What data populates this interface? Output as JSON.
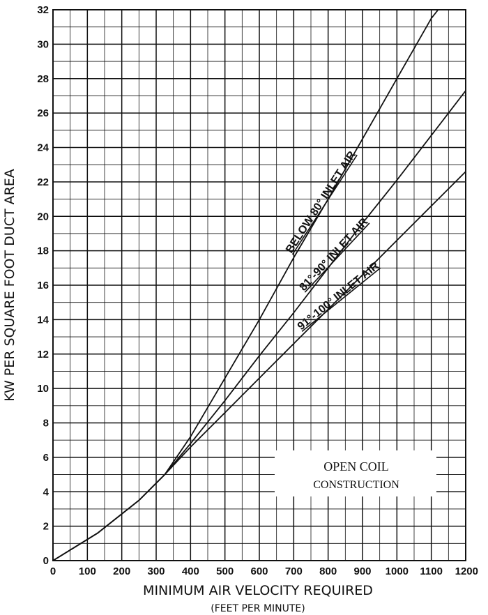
{
  "chart_data": {
    "type": "line",
    "xlabel": "MINIMUM AIR VELOCITY REQUIRED",
    "xlabel_sub": "(FEET PER MINUTE)",
    "ylabel": "KW PER SQUARE FOOT DUCT AREA",
    "xlim": [
      0,
      1200
    ],
    "ylim": [
      0,
      32
    ],
    "x_ticks": [
      0,
      100,
      200,
      300,
      400,
      500,
      600,
      700,
      800,
      900,
      1000,
      1100,
      1200
    ],
    "y_ticks": [
      0,
      2,
      4,
      6,
      8,
      10,
      12,
      14,
      16,
      18,
      20,
      22,
      24,
      26,
      28,
      30,
      32
    ],
    "minor_grid_x": 50,
    "minor_grid_y": 1,
    "grid": true,
    "series": [
      {
        "name": "BELOW 80° INLET AIR",
        "x": [
          0,
          130,
          250,
          325,
          400,
          500,
          600,
          700,
          800,
          900,
          1000,
          1100,
          1120
        ],
        "y": [
          0,
          1.6,
          3.5,
          5.0,
          7.2,
          10.6,
          14.0,
          17.6,
          21.0,
          24.5,
          28.0,
          31.5,
          32.0
        ]
      },
      {
        "name": "81°-90° INLET AIR",
        "x": [
          0,
          130,
          250,
          325,
          400,
          500,
          600,
          700,
          800,
          900,
          1000,
          1100,
          1200
        ],
        "y": [
          0,
          1.6,
          3.5,
          5.0,
          6.8,
          9.3,
          11.9,
          14.4,
          17.0,
          19.6,
          22.1,
          24.7,
          27.3
        ]
      },
      {
        "name": "91°-100° INLET AIR",
        "x": [
          0,
          130,
          250,
          325,
          400,
          500,
          600,
          700,
          800,
          900,
          1000,
          1100,
          1200
        ],
        "y": [
          0,
          1.6,
          3.5,
          5.0,
          6.6,
          8.6,
          10.6,
          12.6,
          14.6,
          16.6,
          18.6,
          20.6,
          22.6
        ]
      }
    ],
    "annotation": {
      "line1": "OPEN COIL",
      "line2": "CONSTRUCTION"
    }
  }
}
